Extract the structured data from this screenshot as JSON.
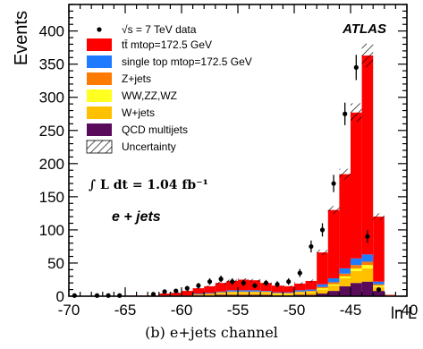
{
  "caption": "(b) e+jets channel",
  "chart_data": {
    "type": "bar",
    "stacked": true,
    "ylabel": "Events",
    "xlabel": "ln L",
    "xlim": [
      -70,
      -40
    ],
    "ylim": [
      0,
      440
    ],
    "x_ticks": [
      -70,
      -65,
      -60,
      -55,
      -50,
      -45,
      -40
    ],
    "x_tick_labels": [
      "-70",
      "-65",
      "-60",
      "-55",
      "-50",
      "-45",
      "-40"
    ],
    "y_ticks": [
      0,
      50,
      100,
      150,
      200,
      250,
      300,
      350,
      400
    ],
    "y_tick_labels": [
      "0",
      "50",
      "100",
      "150",
      "200",
      "250",
      "300",
      "350",
      "400"
    ],
    "experiment_label": "ATLAS",
    "luminosity_label": "∫ L dt = 1.04 fb⁻¹",
    "channel_label": "e + jets",
    "legend_position": "top-left",
    "bin_lower_edges": [
      -70,
      -69,
      -68,
      -67,
      -66,
      -65,
      -64,
      -63,
      -62,
      -61,
      -60,
      -59,
      -58,
      -57,
      -56,
      -55,
      -54,
      -53,
      -52,
      -51,
      -50,
      -49,
      -48,
      -47,
      -46,
      -45,
      -44,
      -43,
      -42,
      -41
    ],
    "bin_width": 1,
    "series": [
      {
        "name": "QCD multijets",
        "color": "#5a0a5a",
        "values": [
          0,
          0,
          0,
          0,
          0,
          0,
          0,
          0,
          0,
          0,
          0,
          1,
          1,
          2,
          2,
          2,
          2,
          2,
          1,
          1,
          2,
          2,
          4,
          8,
          15,
          20,
          22,
          8,
          0,
          0
        ]
      },
      {
        "name": "W+jets",
        "color": "#ffc000",
        "values": [
          0,
          0,
          0,
          0,
          0,
          0,
          0,
          0,
          1,
          1,
          1,
          1,
          2,
          2,
          3,
          3,
          3,
          3,
          2,
          2,
          3,
          4,
          6,
          8,
          12,
          18,
          20,
          6,
          1,
          0
        ]
      },
      {
        "name": "WW,ZZ,WZ",
        "color": "#ffff20",
        "values": [
          0,
          0,
          0,
          0,
          0,
          0,
          0,
          0,
          0,
          0,
          0,
          0,
          0,
          1,
          1,
          1,
          1,
          1,
          1,
          1,
          1,
          1,
          2,
          2,
          3,
          4,
          5,
          2,
          0,
          0
        ]
      },
      {
        "name": "Z+jets",
        "color": "#ff7a00",
        "values": [
          0,
          0,
          0,
          0,
          0,
          0,
          0,
          0,
          0,
          0,
          0,
          1,
          1,
          1,
          1,
          1,
          1,
          1,
          1,
          1,
          1,
          1,
          2,
          3,
          4,
          5,
          5,
          2,
          0,
          0
        ]
      },
      {
        "name": "single top mtop=172.5 GeV",
        "color": "#1e7bff",
        "values": [
          0,
          0,
          0,
          0,
          0,
          0,
          0,
          0,
          0,
          0,
          0,
          1,
          1,
          1,
          2,
          2,
          2,
          1,
          1,
          1,
          2,
          2,
          4,
          6,
          8,
          10,
          11,
          4,
          0,
          0
        ]
      },
      {
        "name": "tt̄ mtop=172.5 GeV",
        "color": "#ff0000",
        "values": [
          0,
          0,
          0,
          0,
          0,
          1,
          1,
          1,
          3,
          4,
          7,
          8,
          10,
          13,
          14,
          16,
          15,
          12,
          10,
          9,
          10,
          13,
          48,
          103,
          142,
          220,
          300,
          98,
          1,
          0
        ]
      }
    ],
    "uncertainty": {
      "name": "Uncertainty",
      "values": [
        0,
        0,
        0,
        0,
        0,
        0,
        0,
        0,
        1,
        1,
        1,
        1,
        1,
        2,
        2,
        2,
        2,
        2,
        1,
        1,
        2,
        2,
        4,
        6,
        8,
        14,
        18,
        5,
        0,
        0
      ]
    },
    "data": {
      "name": "√s = 7 TeV data",
      "x": [
        -69.5,
        -67.5,
        -66.5,
        -65.5,
        -62.5,
        -61.5,
        -60.5,
        -59.5,
        -58.5,
        -57.5,
        -56.5,
        -55.5,
        -54.5,
        -53.5,
        -52.5,
        -51.5,
        -50.5,
        -49.5,
        -48.5,
        -47.5,
        -46.5,
        -45.5,
        -44.5,
        -43.5,
        -42.5
      ],
      "y": [
        1,
        1,
        1,
        1,
        3,
        7,
        8,
        12,
        16,
        22,
        26,
        22,
        20,
        16,
        20,
        18,
        22,
        35,
        75,
        100,
        170,
        275,
        345,
        90,
        10
      ],
      "yerr": [
        1,
        1,
        1,
        1,
        2,
        3,
        3,
        3.5,
        4,
        5,
        5,
        5,
        4.5,
        4,
        4.5,
        4.5,
        5,
        6,
        9,
        10,
        13,
        17,
        19,
        9.5,
        3
      ]
    }
  }
}
